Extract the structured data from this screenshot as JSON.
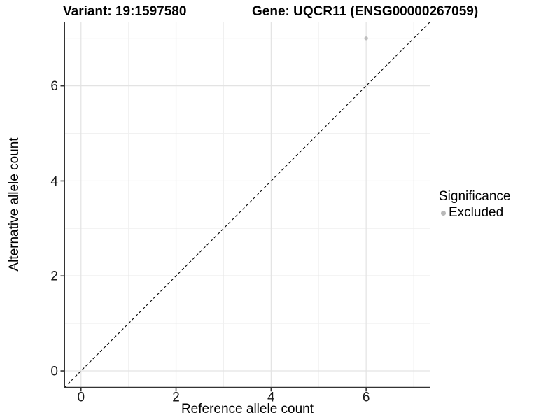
{
  "figure": {
    "titles": {
      "variant": "Variant: 19:1597580",
      "gene": "Gene: UQCR11 (ENSG00000267059)"
    }
  },
  "chart_data": {
    "type": "scatter",
    "title": "Variant: 19:1597580    Gene: UQCR11 (ENSG00000267059)",
    "xlabel": "Reference allele count",
    "ylabel": "Alternative allele count",
    "xlim": [
      -0.35,
      7.35
    ],
    "ylim": [
      -0.35,
      7.35
    ],
    "x_ticks": [
      0,
      2,
      4,
      6
    ],
    "y_ticks": [
      0,
      2,
      4,
      6
    ],
    "x_minor_gridlines": [
      1,
      3,
      5,
      7
    ],
    "y_minor_gridlines": [
      1,
      3,
      5,
      7
    ],
    "grid": "on",
    "series": [
      {
        "name": "Excluded",
        "color": "#bdbdbd",
        "marker": "circle",
        "points": [
          {
            "x": 6,
            "y": 7
          }
        ]
      }
    ],
    "reference_line": {
      "kind": "identity y=x",
      "style": "dashed",
      "color": "#000000"
    },
    "legend": {
      "title": "Significance",
      "position": "right",
      "items": [
        {
          "label": "Excluded",
          "marker_color": "#b9b9b9"
        }
      ]
    },
    "colors": {
      "background": "#ffffff",
      "grid_major": "#e3e3e3",
      "grid_minor": "#efefef",
      "axis": "#333333",
      "tick_text": "#1a1a1a"
    }
  }
}
